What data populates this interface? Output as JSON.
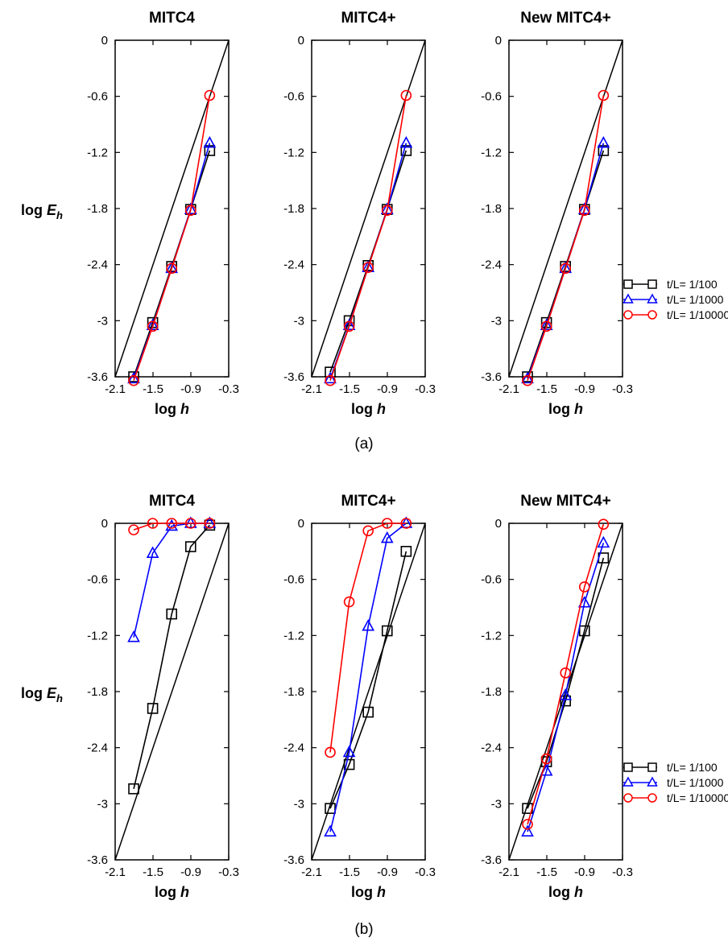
{
  "figure": {
    "captions": [
      "(a)",
      "(b)"
    ],
    "ylabel": {
      "main": "log E",
      "sub": "h"
    },
    "xlabel": "log h",
    "legend": [
      "t/L= 1/100",
      "t/L= 1/1000",
      "t/L= 1/10000"
    ]
  },
  "chart_data": [
    {
      "type": "line",
      "title": "MITC4",
      "group": "(a)",
      "xlabel": "log h",
      "ylabel": "log E_h",
      "xlim": [
        -2.1,
        -0.3
      ],
      "ylim": [
        -3.6,
        0
      ],
      "xticks": [
        "-2.1",
        "-1.5",
        "-0.9",
        "-0.3"
      ],
      "yticks": [
        "0",
        "-0.6",
        "-1.2",
        "-1.8",
        "-2.4",
        "-3",
        "-3.6"
      ],
      "reference_line": [
        [
          -2.1,
          -3.6
        ],
        [
          -0.3,
          0
        ]
      ],
      "series": [
        {
          "name": "t/L= 1/100",
          "color": "#000000",
          "marker": "square",
          "x": [
            -1.806,
            -1.505,
            -1.204,
            -0.903,
            -0.602
          ],
          "y": [
            -3.6,
            -3.02,
            -2.42,
            -1.81,
            -1.18
          ]
        },
        {
          "name": "t/L= 1/1000",
          "color": "#0000ff",
          "marker": "triangle",
          "x": [
            -1.806,
            -1.505,
            -1.204,
            -0.903,
            -0.602
          ],
          "y": [
            -3.62,
            -3.05,
            -2.44,
            -1.81,
            -1.1
          ]
        },
        {
          "name": "t/L= 1/10000",
          "color": "#ff0000",
          "marker": "circle",
          "x": [
            -1.806,
            -1.505,
            -1.204,
            -0.903,
            -0.602
          ],
          "y": [
            -3.64,
            -3.06,
            -2.44,
            -1.82,
            -0.59
          ]
        }
      ]
    },
    {
      "type": "line",
      "title": "MITC4+",
      "group": "(a)",
      "xlabel": "log h",
      "ylabel": "log E_h",
      "xlim": [
        -2.1,
        -0.3
      ],
      "ylim": [
        -3.6,
        0
      ],
      "xticks": [
        "-2.1",
        "-1.5",
        "-0.9",
        "-0.3"
      ],
      "yticks": [
        "0",
        "-0.6",
        "-1.2",
        "-1.8",
        "-2.4",
        "-3",
        "-3.6"
      ],
      "reference_line": [
        [
          -2.1,
          -3.6
        ],
        [
          -0.3,
          0
        ]
      ],
      "series": [
        {
          "name": "t/L= 1/100",
          "color": "#000000",
          "marker": "square",
          "x": [
            -1.806,
            -1.505,
            -1.204,
            -0.903,
            -0.602
          ],
          "y": [
            -3.55,
            -3.0,
            -2.41,
            -1.81,
            -1.18
          ]
        },
        {
          "name": "t/L= 1/1000",
          "color": "#0000ff",
          "marker": "triangle",
          "x": [
            -1.806,
            -1.505,
            -1.204,
            -0.903,
            -0.602
          ],
          "y": [
            -3.62,
            -3.05,
            -2.43,
            -1.81,
            -1.1
          ]
        },
        {
          "name": "t/L= 1/10000",
          "color": "#ff0000",
          "marker": "circle",
          "x": [
            -1.806,
            -1.505,
            -1.204,
            -0.903,
            -0.602
          ],
          "y": [
            -3.64,
            -3.06,
            -2.43,
            -1.82,
            -0.59
          ]
        }
      ]
    },
    {
      "type": "line",
      "title": "New MITC4+",
      "group": "(a)",
      "xlabel": "log h",
      "ylabel": "log E_h",
      "xlim": [
        -2.1,
        -0.3
      ],
      "ylim": [
        -3.6,
        0
      ],
      "xticks": [
        "-2.1",
        "-1.5",
        "-0.9",
        "-0.3"
      ],
      "yticks": [
        "0",
        "-0.6",
        "-1.2",
        "-1.8",
        "-2.4",
        "-3",
        "-3.6"
      ],
      "reference_line": [
        [
          -2.1,
          -3.6
        ],
        [
          -0.3,
          0
        ]
      ],
      "series": [
        {
          "name": "t/L= 1/100",
          "color": "#000000",
          "marker": "square",
          "x": [
            -1.806,
            -1.505,
            -1.204,
            -0.903,
            -0.602
          ],
          "y": [
            -3.6,
            -3.02,
            -2.42,
            -1.81,
            -1.18
          ]
        },
        {
          "name": "t/L= 1/1000",
          "color": "#0000ff",
          "marker": "triangle",
          "x": [
            -1.806,
            -1.505,
            -1.204,
            -0.903,
            -0.602
          ],
          "y": [
            -3.62,
            -3.05,
            -2.44,
            -1.81,
            -1.1
          ]
        },
        {
          "name": "t/L= 1/10000",
          "color": "#ff0000",
          "marker": "circle",
          "x": [
            -1.806,
            -1.505,
            -1.204,
            -0.903,
            -0.602
          ],
          "y": [
            -3.64,
            -3.06,
            -2.44,
            -1.82,
            -0.59
          ]
        }
      ]
    },
    {
      "type": "line",
      "title": "MITC4",
      "group": "(b)",
      "xlabel": "log h",
      "ylabel": "log E_h",
      "xlim": [
        -2.1,
        -0.3
      ],
      "ylim": [
        -3.6,
        0
      ],
      "xticks": [
        "-2.1",
        "-1.5",
        "-0.9",
        "-0.3"
      ],
      "yticks": [
        "0",
        "-0.6",
        "-1.2",
        "-1.8",
        "-2.4",
        "-3",
        "-3.6"
      ],
      "reference_line": [
        [
          -2.1,
          -3.6
        ],
        [
          -0.3,
          0
        ]
      ],
      "series": [
        {
          "name": "t/L= 1/100",
          "color": "#000000",
          "marker": "square",
          "x": [
            -1.806,
            -1.505,
            -1.204,
            -0.903,
            -0.602
          ],
          "y": [
            -2.84,
            -1.98,
            -0.97,
            -0.25,
            -0.02
          ]
        },
        {
          "name": "t/L= 1/1000",
          "color": "#0000ff",
          "marker": "triangle",
          "x": [
            -1.806,
            -1.505,
            -1.204,
            -0.903,
            -0.602
          ],
          "y": [
            -1.22,
            -0.32,
            -0.03,
            0.0,
            0.0
          ]
        },
        {
          "name": "t/L= 1/10000",
          "color": "#ff0000",
          "marker": "circle",
          "x": [
            -1.806,
            -1.505,
            -1.204,
            -0.903,
            -0.602
          ],
          "y": [
            -0.07,
            0.0,
            0.0,
            0.0,
            0.0
          ]
        }
      ]
    },
    {
      "type": "line",
      "title": "MITC4+",
      "group": "(b)",
      "xlabel": "log h",
      "ylabel": "log E_h",
      "xlim": [
        -2.1,
        -0.3
      ],
      "ylim": [
        -3.6,
        0
      ],
      "xticks": [
        "-2.1",
        "-1.5",
        "-0.9",
        "-0.3"
      ],
      "yticks": [
        "0",
        "-0.6",
        "-1.2",
        "-1.8",
        "-2.4",
        "-3",
        "-3.6"
      ],
      "reference_line": [
        [
          -2.1,
          -3.6
        ],
        [
          -0.3,
          0
        ]
      ],
      "series": [
        {
          "name": "t/L= 1/100",
          "color": "#000000",
          "marker": "square",
          "x": [
            -1.806,
            -1.505,
            -1.204,
            -0.903,
            -0.602
          ],
          "y": [
            -3.05,
            -2.58,
            -2.02,
            -1.15,
            -0.3
          ]
        },
        {
          "name": "t/L= 1/1000",
          "color": "#0000ff",
          "marker": "triangle",
          "x": [
            -1.806,
            -1.505,
            -1.204,
            -0.903,
            -0.602
          ],
          "y": [
            -3.3,
            -2.45,
            -1.1,
            -0.16,
            0.0
          ]
        },
        {
          "name": "t/L= 1/10000",
          "color": "#ff0000",
          "marker": "circle",
          "x": [
            -1.806,
            -1.505,
            -1.204,
            -0.903,
            -0.602
          ],
          "y": [
            -2.45,
            -0.84,
            -0.08,
            0.0,
            0.0
          ]
        }
      ]
    },
    {
      "type": "line",
      "title": "New MITC4+",
      "group": "(b)",
      "xlabel": "log h",
      "ylabel": "log E_h",
      "xlim": [
        -2.1,
        -0.3
      ],
      "ylim": [
        -3.6,
        0
      ],
      "xticks": [
        "-2.1",
        "-1.5",
        "-0.9",
        "-0.3"
      ],
      "yticks": [
        "0",
        "-0.6",
        "-1.2",
        "-1.8",
        "-2.4",
        "-3",
        "-3.6"
      ],
      "reference_line": [
        [
          -2.1,
          -3.6
        ],
        [
          -0.3,
          0
        ]
      ],
      "series": [
        {
          "name": "t/L= 1/100",
          "color": "#000000",
          "marker": "square",
          "x": [
            -1.806,
            -1.505,
            -1.204,
            -0.903,
            -0.602
          ],
          "y": [
            -3.05,
            -2.55,
            -1.9,
            -1.15,
            -0.37
          ]
        },
        {
          "name": "t/L= 1/1000",
          "color": "#0000ff",
          "marker": "triangle",
          "x": [
            -1.806,
            -1.505,
            -1.204,
            -0.903,
            -0.602
          ],
          "y": [
            -3.3,
            -2.65,
            -1.84,
            -0.85,
            -0.21
          ]
        },
        {
          "name": "t/L= 1/10000",
          "color": "#ff0000",
          "marker": "circle",
          "x": [
            -1.806,
            -1.505,
            -1.204,
            -0.903,
            -0.602
          ],
          "y": [
            -3.22,
            -2.52,
            -1.6,
            -0.68,
            -0.01
          ]
        }
      ]
    }
  ]
}
